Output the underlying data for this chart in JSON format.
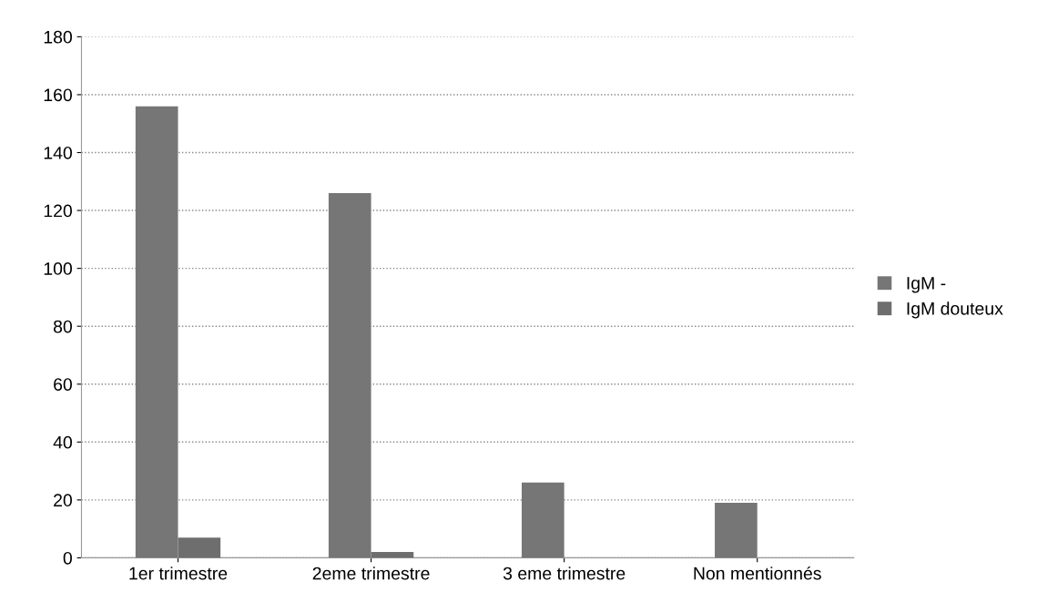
{
  "chart_data": {
    "type": "bar",
    "categories": [
      "1er trimestre",
      "2eme trimestre",
      "3 eme trimestre",
      "Non mentionnés"
    ],
    "series": [
      {
        "name": "IgM -",
        "color": "#767676",
        "values": [
          156,
          126,
          26,
          19
        ]
      },
      {
        "name": "IgM douteux",
        "color": "#6e6e6e",
        "values": [
          7,
          2,
          0,
          0
        ]
      }
    ],
    "ylim": [
      0,
      180
    ],
    "yticks": [
      0,
      20,
      40,
      60,
      80,
      100,
      120,
      140,
      160,
      180
    ],
    "grid": "y",
    "legend": "right"
  }
}
